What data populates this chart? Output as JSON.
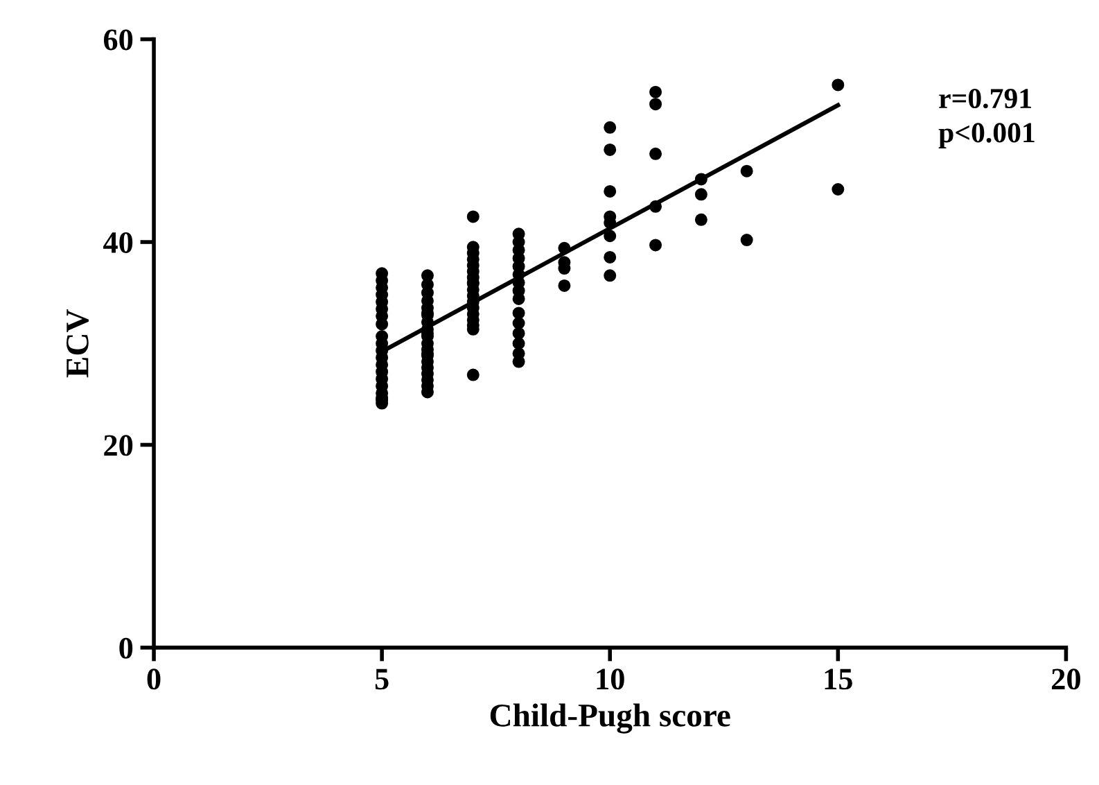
{
  "chart_data": {
    "type": "scatter",
    "xlabel": "Child-Pugh score",
    "ylabel": "ECV",
    "xlim": [
      0,
      20
    ],
    "ylim": [
      0,
      60
    ],
    "xticks": [
      0,
      5,
      10,
      15,
      20
    ],
    "yticks": [
      0,
      20,
      40,
      60
    ],
    "grid": false,
    "legend": false,
    "marker": "circle",
    "series": [
      {
        "color": "#000000",
        "x": [
          5,
          5,
          5,
          5,
          5,
          5,
          5,
          5,
          5,
          5,
          5,
          5,
          5,
          5,
          5,
          5,
          5,
          5,
          5,
          5,
          6,
          6,
          6,
          6,
          6,
          6,
          6,
          6,
          6,
          6,
          6,
          6,
          6,
          6,
          6,
          6,
          6,
          6,
          6,
          6,
          6,
          7,
          7,
          7,
          7,
          7,
          7,
          7,
          7,
          7,
          7,
          7,
          7,
          7,
          7,
          7,
          7,
          7,
          7,
          8,
          8,
          8,
          8,
          8,
          8,
          8,
          8,
          8,
          8,
          8,
          8,
          8,
          8,
          8,
          9,
          9,
          9,
          9,
          10,
          10,
          10,
          10,
          10,
          10,
          10,
          10,
          11,
          11,
          11,
          11,
          11,
          12,
          12,
          12,
          13,
          13,
          15,
          15
        ],
        "values": [
          36.9,
          36.2,
          35.5,
          34.8,
          34.1,
          33.4,
          32.7,
          31.9,
          30.7,
          30.0,
          29.3,
          28.6,
          27.9,
          27.2,
          26.5,
          25.8,
          25.1,
          24.6,
          24.1,
          24.4,
          36.7,
          35.8,
          35.0,
          34.2,
          33.5,
          32.8,
          32.1,
          31.4,
          30.7,
          30.0,
          29.4,
          28.8,
          28.2,
          27.6,
          27.0,
          26.4,
          25.8,
          25.2,
          31.0,
          33.0,
          29.0,
          42.5,
          39.5,
          38.9,
          38.3,
          37.7,
          37.1,
          36.5,
          35.9,
          35.3,
          34.7,
          34.1,
          33.5,
          32.9,
          32.3,
          31.8,
          31.4,
          26.9,
          36.0,
          40.8,
          40.0,
          39.2,
          38.4,
          37.6,
          36.8,
          36.0,
          35.2,
          34.4,
          33.0,
          32.0,
          31.0,
          30.0,
          29.0,
          28.2,
          39.4,
          38.0,
          37.4,
          35.7,
          51.3,
          49.1,
          45.0,
          42.5,
          41.9,
          40.6,
          38.5,
          36.7,
          54.8,
          53.6,
          48.7,
          43.5,
          39.7,
          46.2,
          44.7,
          42.2,
          47.0,
          40.2,
          55.5,
          45.2
        ]
      },
      {
        "type": "line",
        "marker": "none",
        "color": "#000000",
        "x": [
          5,
          15
        ],
        "values": [
          29.2,
          53.5
        ]
      }
    ],
    "annotations": [
      "r=0.791\np<0.001"
    ]
  }
}
